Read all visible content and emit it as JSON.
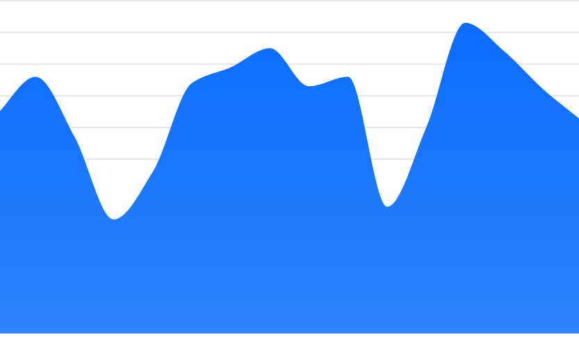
{
  "chart_data": {
    "type": "area",
    "title": "",
    "xlabel": "",
    "ylabel": "",
    "x": [
      0,
      1,
      2,
      3,
      4,
      5,
      6,
      7,
      8,
      9,
      10,
      11,
      12,
      13,
      14,
      15
    ],
    "series": [
      {
        "values": [
          4.4,
          5.6,
          3.7,
          1.1,
          2.6,
          5.4,
          5.9,
          6.5,
          5.3,
          5.6,
          1.5,
          4.0,
          7.3,
          6.4,
          5.2,
          4.2
        ]
      }
    ],
    "ylim": [
      -2.5,
      8
    ],
    "grid": true,
    "gridlines": [
      8,
      7,
      6,
      5,
      4,
      3
    ],
    "colors": {
      "fill_top": "#0a6cff",
      "fill_bottom": "#2e84fb",
      "grid": "#e2e2e2"
    }
  }
}
